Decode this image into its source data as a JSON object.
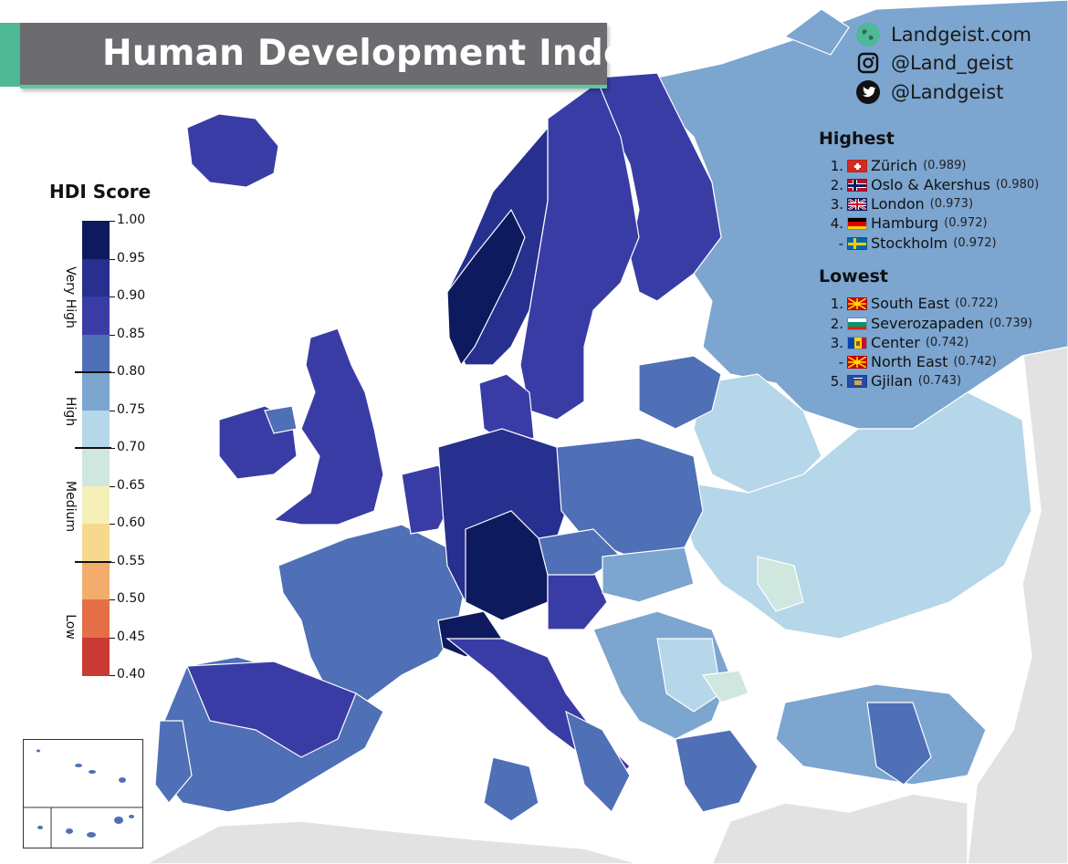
{
  "title": "Human Development Index",
  "brand": {
    "website": "Landgeist.com",
    "instagram": "@Land_geist",
    "twitter": "@Landgeist",
    "icons": [
      "globe-icon",
      "instagram-icon",
      "twitter-icon"
    ]
  },
  "highest": {
    "heading": "Highest",
    "items": [
      {
        "rank": "1.",
        "name": "Zürich",
        "value": "(0.989)",
        "flag": "switzerland"
      },
      {
        "rank": "2.",
        "name": "Oslo & Akershus",
        "value": "(0.980)",
        "flag": "norway"
      },
      {
        "rank": "3.",
        "name": "London",
        "value": "(0.973)",
        "flag": "united-kingdom"
      },
      {
        "rank": "4.",
        "name": "Hamburg",
        "value": "(0.972)",
        "flag": "germany"
      },
      {
        "rank": "-",
        "name": "Stockholm",
        "value": "(0.972)",
        "flag": "sweden"
      }
    ]
  },
  "lowest": {
    "heading": "Lowest",
    "items": [
      {
        "rank": "1.",
        "name": "South East",
        "value": "(0.722)",
        "flag": "north-macedonia"
      },
      {
        "rank": "2.",
        "name": "Severozapaden",
        "value": "(0.739)",
        "flag": "bulgaria"
      },
      {
        "rank": "3.",
        "name": "Center",
        "value": "(0.742)",
        "flag": "moldova"
      },
      {
        "rank": "-",
        "name": "North East",
        "value": "(0.742)",
        "flag": "north-macedonia"
      },
      {
        "rank": "5.",
        "name": "Gjilan",
        "value": "(0.743)",
        "flag": "kosovo"
      }
    ]
  },
  "legend": {
    "title": "HDI Score",
    "ticks": [
      "1.00",
      "0.95",
      "0.90",
      "0.85",
      "0.80",
      "0.75",
      "0.70",
      "0.65",
      "0.60",
      "0.55",
      "0.50",
      "0.45",
      "0.40"
    ],
    "colors": [
      "#0e1a5e",
      "#272f8f",
      "#3a3ca6",
      "#4f6fb6",
      "#7ca5d0",
      "#b6d6e9",
      "#cfe7de",
      "#f4f0b8",
      "#f7d98e",
      "#f2ad6d",
      "#e56f47",
      "#c93a32",
      "#9e1b2a"
    ],
    "classes": [
      "Very High",
      "High",
      "Medium",
      "Low"
    ]
  },
  "map_colors": {
    "water": "#ffffff",
    "non_europe": "#e2e2e2",
    "border": "#ffffff"
  }
}
